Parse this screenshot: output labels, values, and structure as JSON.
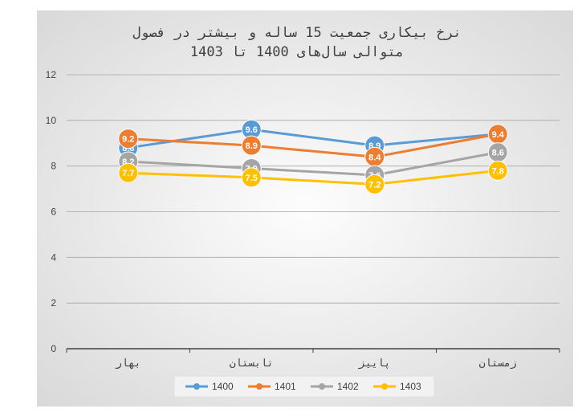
{
  "chart_data": {
    "type": "line",
    "title_lines": [
      "نرخ بیکاری جمعیت 15 ساله و بیشتر در فصول",
      "متوالی سال‌های 1400 تا 1403"
    ],
    "categories": [
      "بهار",
      "تابستان",
      "پاییز",
      "زمستان"
    ],
    "ylim": [
      0,
      12
    ],
    "yticks": [
      "0",
      "2",
      "4",
      "6",
      "8",
      "10",
      "12"
    ],
    "grid": true,
    "legend_position": "bottom",
    "series": [
      {
        "name": "1400",
        "color": "#5b9bd5",
        "values": [
          8.8,
          9.6,
          8.9,
          9.4
        ],
        "labels": [
          "8.8",
          "9.6",
          "8.9",
          ""
        ]
      },
      {
        "name": "1401",
        "color": "#ed7d31",
        "values": [
          9.2,
          8.9,
          8.4,
          9.4
        ],
        "labels": [
          "9.2",
          "8.9",
          "8.4",
          "9.4"
        ]
      },
      {
        "name": "1402",
        "color": "#a5a5a5",
        "values": [
          8.2,
          7.9,
          7.6,
          8.6
        ],
        "labels": [
          "8.2",
          "7.9",
          "7.6",
          "8.6"
        ]
      },
      {
        "name": "1403",
        "color": "#ffc000",
        "values": [
          7.7,
          7.5,
          7.2,
          7.8
        ],
        "labels": [
          "7.7",
          "7.5",
          "7.2",
          "7.8"
        ]
      }
    ]
  }
}
